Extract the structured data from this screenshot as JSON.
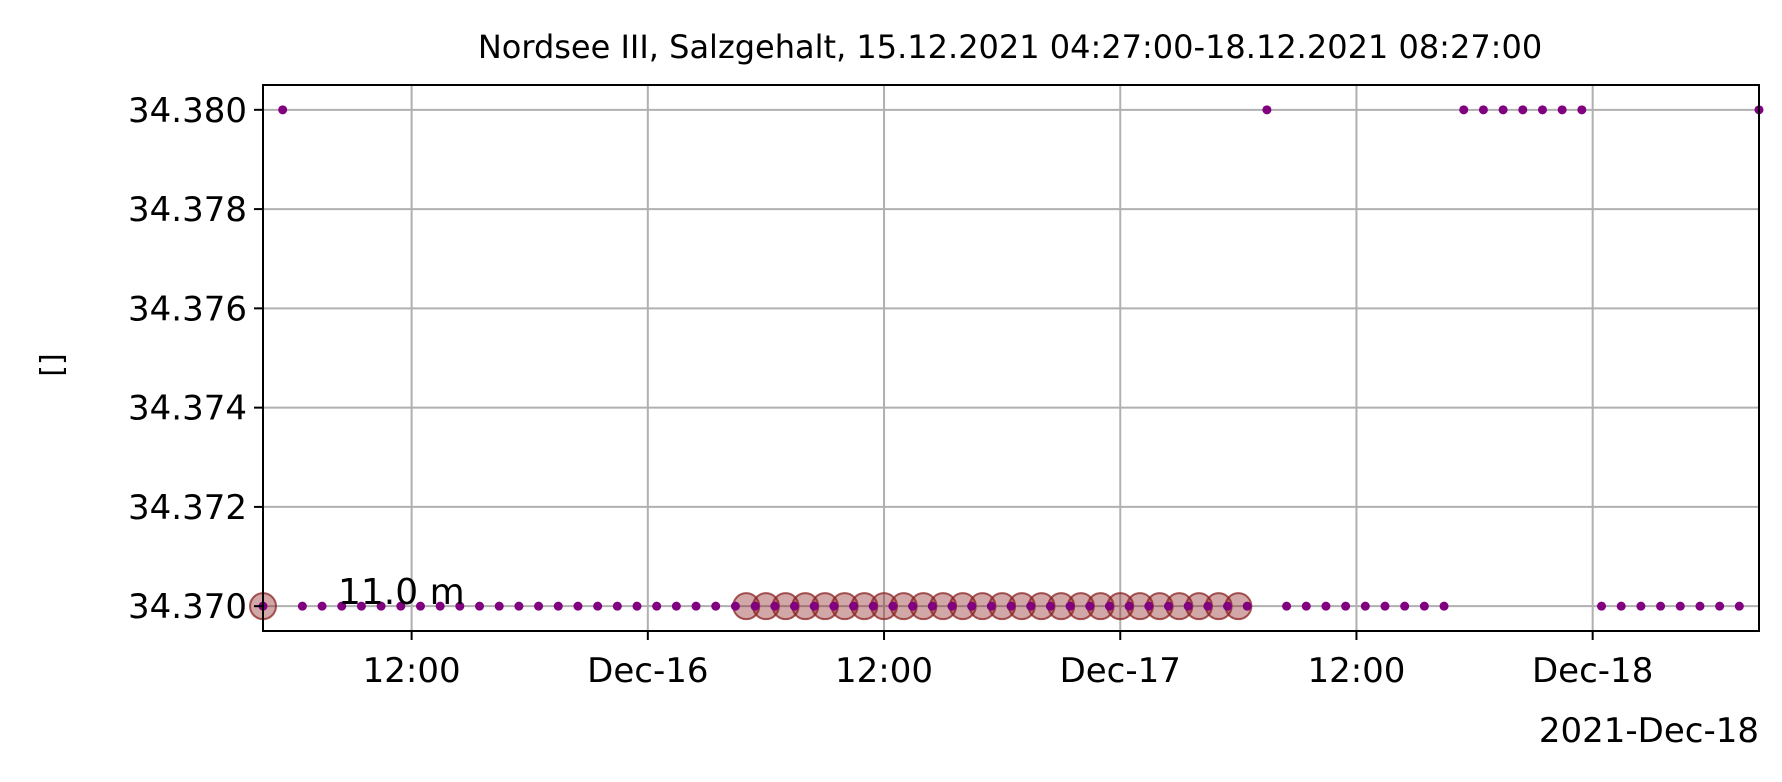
{
  "chart_data": {
    "type": "scatter",
    "title": "Nordsee III, Salzgehalt, 15.12.2021 04:27:00-18.12.2021 08:27:00",
    "ylabel": "[]",
    "xlabel": "",
    "x_offset_label": "2021-Dec-18",
    "x_range": [
      "2021-12-15 04:27",
      "2021-12-18 08:27"
    ],
    "ylim": [
      34.3695,
      34.3805
    ],
    "y_ticks": [
      {
        "value": 34.37,
        "label": "34.370"
      },
      {
        "value": 34.372,
        "label": "34.372"
      },
      {
        "value": 34.374,
        "label": "34.374"
      },
      {
        "value": 34.376,
        "label": "34.376"
      },
      {
        "value": 34.378,
        "label": "34.378"
      },
      {
        "value": 34.38,
        "label": "34.380"
      }
    ],
    "x_ticks": [
      {
        "value": "2021-12-15 12:00",
        "label": "12:00"
      },
      {
        "value": "2021-12-16 00:00",
        "label": "Dec-16"
      },
      {
        "value": "2021-12-16 12:00",
        "label": "12:00"
      },
      {
        "value": "2021-12-17 00:00",
        "label": "Dec-17"
      },
      {
        "value": "2021-12-17 12:00",
        "label": "12:00"
      },
      {
        "value": "2021-12-18 00:00",
        "label": "Dec-18"
      }
    ],
    "grid": true,
    "annotation": {
      "text": "11.0 m",
      "x": "2021-12-15 08:00",
      "y": 34.37
    },
    "colors": {
      "points": "#800080",
      "highlight": "#8b2323",
      "grid": "#b0b0b0"
    },
    "series": [
      {
        "values_time": [
          "2021-12-15 04:27",
          "2021-12-15 05:27",
          "2021-12-15 06:27",
          "2021-12-15 07:27",
          "2021-12-15 08:27",
          "2021-12-15 09:27",
          "2021-12-15 10:27",
          "2021-12-15 11:27",
          "2021-12-15 12:27",
          "2021-12-15 13:27",
          "2021-12-15 14:27",
          "2021-12-15 15:27",
          "2021-12-15 16:27",
          "2021-12-15 17:27",
          "2021-12-15 18:27",
          "2021-12-15 19:27",
          "2021-12-15 20:27",
          "2021-12-15 21:27",
          "2021-12-15 22:27",
          "2021-12-15 23:27",
          "2021-12-16 00:27",
          "2021-12-16 01:27",
          "2021-12-16 02:27",
          "2021-12-16 03:27",
          "2021-12-16 04:27",
          "2021-12-16 05:27",
          "2021-12-16 06:27",
          "2021-12-16 07:27",
          "2021-12-16 08:27",
          "2021-12-16 09:27",
          "2021-12-16 10:27",
          "2021-12-16 11:27",
          "2021-12-16 12:27",
          "2021-12-16 13:27",
          "2021-12-16 14:27",
          "2021-12-16 15:27",
          "2021-12-16 16:27",
          "2021-12-16 17:27",
          "2021-12-16 18:27",
          "2021-12-16 19:27",
          "2021-12-16 20:27",
          "2021-12-16 21:27",
          "2021-12-16 22:27",
          "2021-12-16 23:27",
          "2021-12-17 00:27",
          "2021-12-17 01:27",
          "2021-12-17 02:27",
          "2021-12-17 03:27",
          "2021-12-17 04:27",
          "2021-12-17 05:27",
          "2021-12-17 06:27",
          "2021-12-17 07:27",
          "2021-12-17 08:27",
          "2021-12-17 09:27",
          "2021-12-17 10:27",
          "2021-12-17 11:27",
          "2021-12-17 12:27",
          "2021-12-17 13:27",
          "2021-12-17 14:27",
          "2021-12-17 15:27",
          "2021-12-17 16:27",
          "2021-12-17 17:27",
          "2021-12-17 18:27",
          "2021-12-17 19:27",
          "2021-12-17 20:27",
          "2021-12-17 21:27",
          "2021-12-17 22:27",
          "2021-12-17 23:27",
          "2021-12-18 00:27",
          "2021-12-18 01:27",
          "2021-12-18 02:27",
          "2021-12-18 03:27",
          "2021-12-18 04:27",
          "2021-12-18 05:27",
          "2021-12-18 06:27",
          "2021-12-18 07:27",
          "2021-12-18 08:27"
        ],
        "values_y": [
          34.37,
          34.38,
          34.37,
          34.37,
          34.37,
          34.37,
          34.37,
          34.37,
          34.37,
          34.37,
          34.37,
          34.37,
          34.37,
          34.37,
          34.37,
          34.37,
          34.37,
          34.37,
          34.37,
          34.37,
          34.37,
          34.37,
          34.37,
          34.37,
          34.37,
          34.37,
          34.37,
          34.37,
          34.37,
          34.37,
          34.37,
          34.37,
          34.37,
          34.37,
          34.37,
          34.37,
          34.37,
          34.37,
          34.37,
          34.37,
          34.37,
          34.37,
          34.37,
          34.37,
          34.37,
          34.37,
          34.37,
          34.37,
          34.37,
          34.37,
          34.37,
          34.38,
          34.37,
          34.37,
          34.37,
          34.37,
          34.37,
          34.37,
          34.37,
          34.37,
          34.37,
          34.38,
          34.38,
          34.38,
          34.38,
          34.38,
          34.38,
          34.38,
          34.37,
          34.37,
          34.37,
          34.37,
          34.37,
          34.37,
          34.37,
          34.37,
          34.38
        ],
        "highlighted_time": [
          "2021-12-15 04:27",
          "2021-12-16 05:00",
          "2021-12-16 06:00",
          "2021-12-16 07:00",
          "2021-12-16 08:00",
          "2021-12-16 09:00",
          "2021-12-16 10:00",
          "2021-12-16 11:00",
          "2021-12-16 12:00",
          "2021-12-16 13:00",
          "2021-12-16 14:00",
          "2021-12-16 15:00",
          "2021-12-16 16:00",
          "2021-12-16 17:00",
          "2021-12-16 18:00",
          "2021-12-16 19:00",
          "2021-12-16 20:00",
          "2021-12-16 21:00",
          "2021-12-16 22:00",
          "2021-12-16 23:00",
          "2021-12-17 00:00",
          "2021-12-17 01:00",
          "2021-12-17 02:00",
          "2021-12-17 03:00",
          "2021-12-17 04:00",
          "2021-12-17 05:00",
          "2021-12-17 06:00"
        ],
        "highlighted_y": 34.37
      }
    ]
  }
}
